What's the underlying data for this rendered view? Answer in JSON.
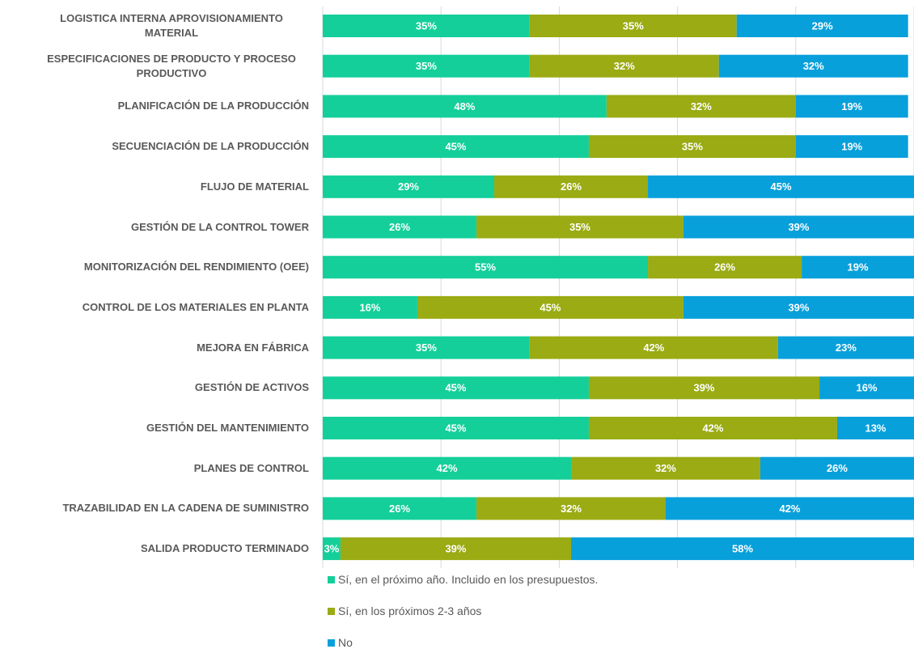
{
  "chart_data": {
    "type": "stacked-barh",
    "categories": [
      "LOGISTICA INTERNA APROVISIONAMIENTO MATERIAL",
      "ESPECIFICACIONES DE PRODUCTO Y PROCESO PRODUCTIVO",
      "PLANIFICACIÓN DE LA PRODUCCIÓN",
      "SECUENCIACIÓN DE LA  PRODUCCIÓN",
      "FLUJO DE MATERIAL",
      "GESTIÓN DE LA CONTROL TOWER",
      "MONITORIZACIÓN DEL RENDIMIENTO (OEE)",
      "CONTROL DE LOS MATERIALES EN PLANTA",
      "MEJORA EN FÁBRICA",
      "GESTIÓN DE ACTIVOS",
      "GESTIÓN DEL MANTENIMIENTO",
      "PLANES DE CONTROL",
      "TRAZABILIDAD EN LA CADENA DE SUMINISTRO",
      "SALIDA PRODUCTO TERMINADO"
    ],
    "series": [
      {
        "name": "Sí, en el próximo año. Incluido en los presupuestos.",
        "color": "#14cf9a",
        "values": [
          35,
          35,
          48,
          45,
          29,
          26,
          55,
          16,
          35,
          45,
          45,
          42,
          26,
          3
        ],
        "value_labels": [
          "35%",
          "35%",
          "48%",
          "45%",
          "29%",
          "26%",
          "55%",
          "16%",
          "35%",
          "45%",
          "45%",
          "42%",
          "26%",
          "3%"
        ]
      },
      {
        "name": "Sí, en los próximos 2-3 años",
        "color": "#9aab14",
        "values": [
          35,
          32,
          32,
          35,
          26,
          35,
          26,
          45,
          42,
          39,
          42,
          32,
          32,
          39
        ],
        "value_labels": [
          "35%",
          "32%",
          "32%",
          "35%",
          "26%",
          "35%",
          "26%",
          "45%",
          "42%",
          "39%",
          "42%",
          "32%",
          "32%",
          "39%"
        ]
      },
      {
        "name": "No",
        "color": "#08a0db",
        "values": [
          29,
          32,
          19,
          19,
          45,
          39,
          19,
          39,
          23,
          16,
          13,
          26,
          42,
          58
        ],
        "value_labels": [
          "29%",
          "32%",
          "19%",
          "19%",
          "45%",
          "39%",
          "19%",
          "39%",
          "23%",
          "16%",
          "13%",
          "26%",
          "42%",
          "58%"
        ]
      }
    ],
    "xlim": [
      0,
      100
    ],
    "xticks": [
      0,
      20,
      40,
      60,
      80,
      100
    ],
    "grid": true
  }
}
